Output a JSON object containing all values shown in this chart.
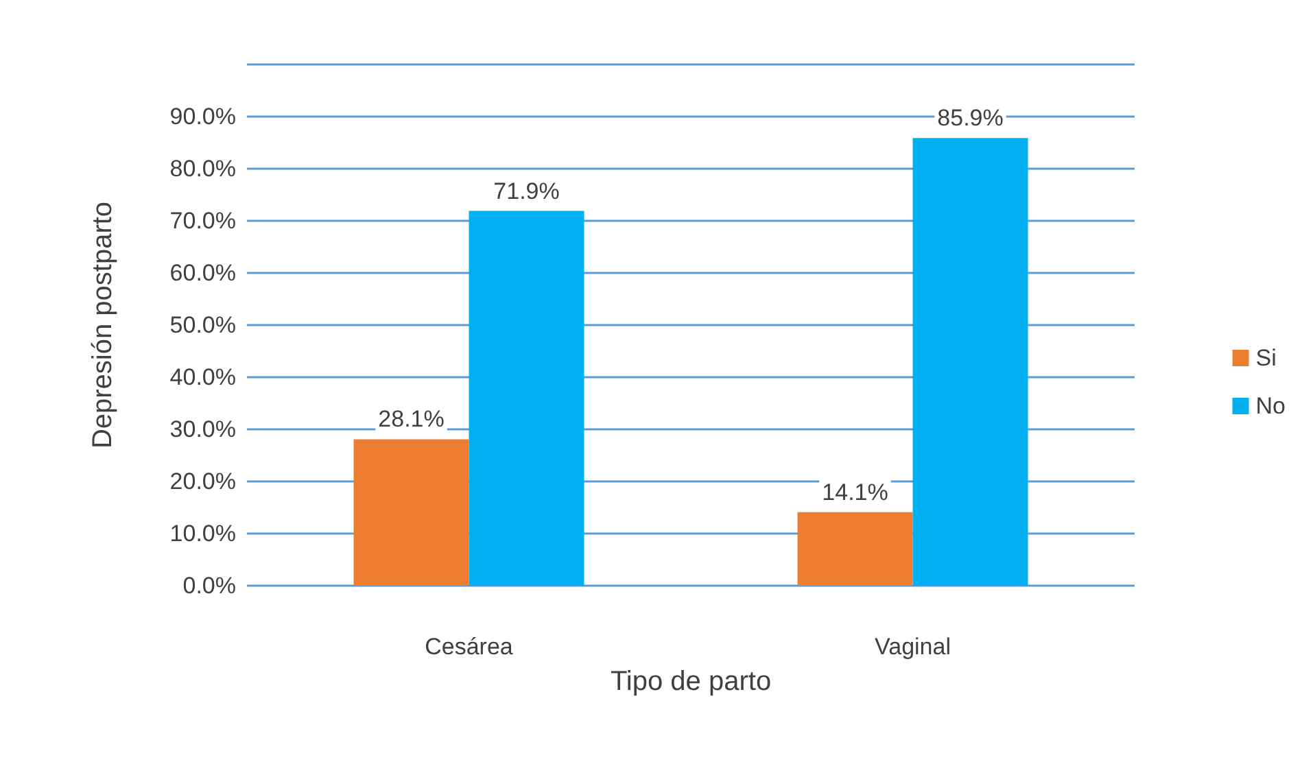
{
  "chart_data": {
    "type": "bar",
    "xlabel": "Tipo de parto",
    "ylabel": "Depresión postparto",
    "categories": [
      "Cesárea",
      "Vaginal"
    ],
    "series": [
      {
        "name": "Si",
        "color": "#ed7d31",
        "values": [
          28.1,
          14.1
        ],
        "value_labels": [
          "28.1%",
          "14.1%"
        ]
      },
      {
        "name": "No",
        "color": "#00b0f0",
        "values": [
          71.9,
          85.9
        ],
        "value_labels": [
          "71.9%",
          "85.9%"
        ]
      }
    ],
    "ylim": [
      0,
      100
    ],
    "yticks": [
      {
        "value": 0,
        "label": "0.0%"
      },
      {
        "value": 10,
        "label": "10.0%"
      },
      {
        "value": 20,
        "label": "20.0%"
      },
      {
        "value": 30,
        "label": "30.0%"
      },
      {
        "value": 40,
        "label": "40.0%"
      },
      {
        "value": 50,
        "label": "50.0%"
      },
      {
        "value": 60,
        "label": "60.0%"
      },
      {
        "value": 70,
        "label": "70.0%"
      },
      {
        "value": 80,
        "label": "80.0%"
      },
      {
        "value": 90,
        "label": "90.0%"
      },
      {
        "value": 100,
        "label": null
      }
    ],
    "grid": true,
    "legend": "right"
  }
}
